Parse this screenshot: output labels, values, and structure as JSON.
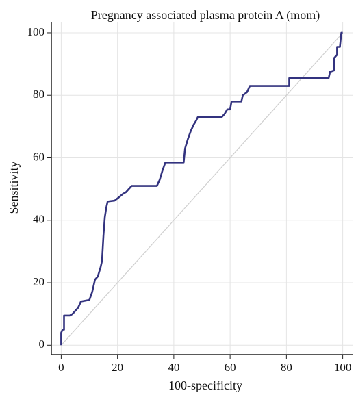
{
  "chart_data": {
    "type": "line",
    "title": "Pregnancy associated plasma protein A (mom)",
    "x_label": "100-specificity",
    "y_label": "Sensitivity",
    "x": [
      0,
      0,
      0.5,
      1,
      1,
      3,
      4,
      6,
      7,
      10,
      11,
      12,
      13,
      14,
      14.5,
      15,
      15.5,
      16,
      16.5,
      19,
      20,
      22,
      23,
      24,
      25,
      34,
      35,
      36,
      37,
      43.5,
      44,
      45,
      46,
      47,
      48,
      48.5,
      57,
      58,
      59,
      60,
      60.5,
      64,
      64.5,
      66,
      67,
      81,
      81,
      95,
      95.5,
      97,
      97,
      98,
      98,
      99,
      99.5,
      100
    ],
    "values": [
      0,
      4,
      5,
      5,
      9.5,
      9.5,
      10,
      12,
      14,
      14.5,
      17,
      21,
      22,
      25,
      27,
      35,
      41,
      44,
      46,
      46.3,
      47,
      48.5,
      49,
      50,
      51,
      51,
      53,
      56,
      58.5,
      58.5,
      63,
      66,
      68.5,
      70.5,
      72,
      73,
      73,
      74,
      75.5,
      75.5,
      78,
      78,
      80,
      81,
      83,
      83,
      85.5,
      85.5,
      87.5,
      88,
      92,
      93,
      95.5,
      95.5,
      100,
      100
    ],
    "color": "#33337f",
    "xlim": [
      -3.5,
      103.5
    ],
    "ylim": [
      -3,
      103.5
    ],
    "xticks": [
      0,
      20,
      40,
      60,
      80,
      100
    ],
    "yticks": [
      0,
      20,
      40,
      60,
      80,
      100
    ],
    "grid": true
  }
}
